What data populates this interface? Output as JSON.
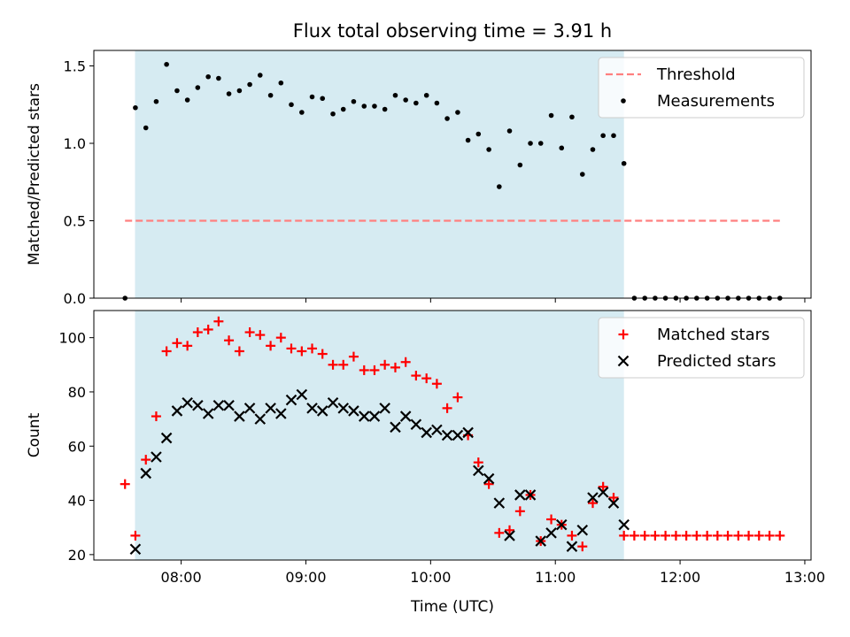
{
  "title": "Flux total observing time = 3.91 h",
  "colors": {
    "span": "#add8e6",
    "threshold": "#ff7f7f",
    "matched": "#ff0000",
    "predicted": "#000000",
    "measurement": "#000000"
  },
  "chart_data": [
    {
      "type": "scatter",
      "name": "ratio-plot",
      "ylabel": "Matched/Predicted stars",
      "xlim": [
        7.3,
        13.05
      ],
      "ylim": [
        0.0,
        1.6
      ],
      "yticks": [
        0.0,
        0.5,
        1.0,
        1.5
      ],
      "ytick_labels": [
        "0.0",
        "0.5",
        "1.0",
        "1.5"
      ],
      "observing_span": [
        7.63,
        11.55
      ],
      "threshold": {
        "name": "Threshold",
        "value": 0.5,
        "x_range": [
          7.55,
          12.8
        ]
      },
      "legend": {
        "position": "top-right",
        "entries": [
          "Threshold",
          "Measurements"
        ]
      },
      "series": [
        {
          "name": "Measurements",
          "x": [
            7.55,
            7.633,
            7.717,
            7.8,
            7.883,
            7.967,
            8.05,
            8.133,
            8.217,
            8.3,
            8.383,
            8.467,
            8.55,
            8.633,
            8.717,
            8.8,
            8.883,
            8.967,
            9.05,
            9.133,
            9.217,
            9.3,
            9.383,
            9.467,
            9.55,
            9.633,
            9.717,
            9.8,
            9.883,
            9.967,
            10.05,
            10.133,
            10.217,
            10.3,
            10.383,
            10.467,
            10.55,
            10.633,
            10.717,
            10.8,
            10.883,
            10.967,
            11.05,
            11.133,
            11.217,
            11.3,
            11.383,
            11.467,
            11.55,
            11.633,
            11.717,
            11.8,
            11.883,
            11.967,
            12.05,
            12.133,
            12.217,
            12.3,
            12.383,
            12.467,
            12.55,
            12.633,
            12.717,
            12.8
          ],
          "y": [
            0.0,
            1.23,
            1.1,
            1.27,
            1.51,
            1.34,
            1.28,
            1.36,
            1.43,
            1.42,
            1.32,
            1.34,
            1.38,
            1.44,
            1.31,
            1.39,
            1.25,
            1.2,
            1.3,
            1.29,
            1.19,
            1.22,
            1.27,
            1.24,
            1.24,
            1.22,
            1.31,
            1.28,
            1.26,
            1.31,
            1.26,
            1.16,
            1.2,
            1.02,
            1.06,
            0.96,
            0.72,
            1.08,
            0.86,
            1.0,
            1.0,
            1.18,
            0.97,
            1.17,
            0.8,
            0.96,
            1.05,
            1.05,
            0.87,
            0.0,
            0.0,
            0.0,
            0.0,
            0.0,
            0.0,
            0.0,
            0.0,
            0.0,
            0.0,
            0.0,
            0.0,
            0.0,
            0.0,
            0.0
          ]
        }
      ]
    },
    {
      "type": "scatter",
      "name": "count-plot",
      "xlabel": "Time (UTC)",
      "ylabel": "Count",
      "xlim": [
        7.3,
        13.05
      ],
      "ylim": [
        18,
        110
      ],
      "xticks": [
        8,
        9,
        10,
        11,
        12,
        13
      ],
      "xtick_labels": [
        "08:00",
        "09:00",
        "10:00",
        "11:00",
        "12:00",
        "13:00"
      ],
      "yticks": [
        20,
        40,
        60,
        80,
        100
      ],
      "ytick_labels": [
        "20",
        "40",
        "60",
        "80",
        "100"
      ],
      "observing_span": [
        7.63,
        11.55
      ],
      "legend": {
        "position": "top-right",
        "entries": [
          "Matched stars",
          "Predicted stars"
        ]
      },
      "series": [
        {
          "name": "Matched stars",
          "marker": "+",
          "x": [
            7.55,
            7.633,
            7.717,
            7.8,
            7.883,
            7.967,
            8.05,
            8.133,
            8.217,
            8.3,
            8.383,
            8.467,
            8.55,
            8.633,
            8.717,
            8.8,
            8.883,
            8.967,
            9.05,
            9.133,
            9.217,
            9.3,
            9.383,
            9.467,
            9.55,
            9.633,
            9.717,
            9.8,
            9.883,
            9.967,
            10.05,
            10.133,
            10.217,
            10.3,
            10.383,
            10.467,
            10.55,
            10.633,
            10.717,
            10.8,
            10.883,
            10.967,
            11.05,
            11.133,
            11.217,
            11.3,
            11.383,
            11.467,
            11.55,
            11.633,
            11.717,
            11.8,
            11.883,
            11.967,
            12.05,
            12.133,
            12.217,
            12.3,
            12.383,
            12.467,
            12.55,
            12.633,
            12.717,
            12.8
          ],
          "y": [
            46,
            27,
            55,
            71,
            95,
            98,
            97,
            102,
            103,
            106,
            99,
            95,
            102,
            101,
            97,
            100,
            96,
            95,
            96,
            94,
            90,
            90,
            93,
            88,
            88,
            90,
            89,
            91,
            86,
            85,
            83,
            74,
            78,
            64,
            54,
            46,
            28,
            29,
            36,
            42,
            25,
            33,
            31,
            27,
            23,
            39,
            45,
            41,
            27,
            27,
            27,
            27,
            27,
            27,
            27,
            27,
            27,
            27,
            27,
            27,
            27,
            27,
            27,
            27
          ]
        },
        {
          "name": "Predicted stars",
          "marker": "x",
          "x": [
            7.633,
            7.717,
            7.8,
            7.883,
            7.967,
            8.05,
            8.133,
            8.217,
            8.3,
            8.383,
            8.467,
            8.55,
            8.633,
            8.717,
            8.8,
            8.883,
            8.967,
            9.05,
            9.133,
            9.217,
            9.3,
            9.383,
            9.467,
            9.55,
            9.633,
            9.717,
            9.8,
            9.883,
            9.967,
            10.05,
            10.133,
            10.217,
            10.3,
            10.383,
            10.467,
            10.55,
            10.633,
            10.717,
            10.8,
            10.883,
            10.967,
            11.05,
            11.133,
            11.217,
            11.3,
            11.383,
            11.467,
            11.55
          ],
          "y": [
            22,
            50,
            56,
            63,
            73,
            76,
            75,
            72,
            75,
            75,
            71,
            74,
            70,
            74,
            72,
            77,
            79,
            74,
            73,
            76,
            74,
            73,
            71,
            71,
            74,
            67,
            71,
            68,
            65,
            66,
            64,
            64,
            65,
            51,
            48,
            39,
            27,
            42,
            42,
            25,
            28,
            31,
            23,
            29,
            41,
            43,
            39,
            31
          ]
        }
      ]
    }
  ]
}
